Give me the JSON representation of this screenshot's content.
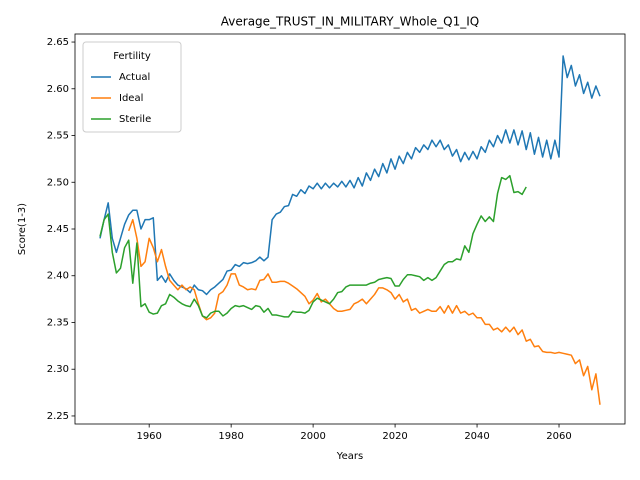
{
  "chart_data": {
    "type": "line",
    "title": "Average_TRUST_IN_MILITARY_Whole_Q1_IQ",
    "xlabel": "Years",
    "ylabel": "Score(1-3)",
    "legend": {
      "title": "Fertility",
      "loc": "upper left"
    },
    "grid": false,
    "xlim": [
      1941.9,
      2076.1
    ],
    "xticks": [
      1960,
      1980,
      2000,
      2020,
      2040,
      2060
    ],
    "ylim": [
      2.2414,
      2.6586
    ],
    "yticks": [
      2.25,
      {
        "value": 2.3,
        "label": "2.30"
      },
      2.35,
      {
        "value": 2.4,
        "label": "2.40"
      },
      2.45,
      {
        "value": 2.5,
        "label": "2.50"
      },
      2.55,
      {
        "value": 2.6,
        "label": "2.60"
      },
      2.65
    ],
    "x": [
      1948,
      1949,
      1950,
      1951,
      1952,
      1953,
      1954,
      1955,
      1956,
      1957,
      1958,
      1959,
      1960,
      1961,
      1962,
      1963,
      1964,
      1965,
      1966,
      1967,
      1968,
      1969,
      1970,
      1971,
      1972,
      1973,
      1974,
      1975,
      1976,
      1977,
      1978,
      1979,
      1980,
      1981,
      1982,
      1983,
      1984,
      1985,
      1986,
      1987,
      1988,
      1989,
      1990,
      1991,
      1992,
      1993,
      1994,
      1995,
      1996,
      1997,
      1998,
      1999,
      2000,
      2001,
      2002,
      2003,
      2004,
      2005,
      2006,
      2007,
      2008,
      2009,
      2010,
      2011,
      2012,
      2013,
      2014,
      2015,
      2016,
      2017,
      2018,
      2019,
      2020,
      2021,
      2022,
      2023,
      2024,
      2025,
      2026,
      2027,
      2028,
      2029,
      2030,
      2031,
      2032,
      2033,
      2034,
      2035,
      2036,
      2037,
      2038,
      2039,
      2040,
      2041,
      2042,
      2043,
      2044,
      2045,
      2046,
      2047,
      2048,
      2049,
      2050,
      2051,
      2052,
      2053,
      2054,
      2055,
      2056,
      2057,
      2058,
      2059,
      2060,
      2061,
      2062,
      2063,
      2064,
      2065,
      2066,
      2067,
      2068,
      2069,
      2070
    ],
    "series": [
      {
        "name": "Actual",
        "color": "#1f77b4",
        "values": [
          2.44,
          2.46,
          2.478,
          2.44,
          2.425,
          2.44,
          2.455,
          2.465,
          2.47,
          2.47,
          2.45,
          2.46,
          2.46,
          2.462,
          2.395,
          2.4,
          2.393,
          2.402,
          2.395,
          2.39,
          2.388,
          2.386,
          2.382,
          2.39,
          2.385,
          2.384,
          2.38,
          2.385,
          2.388,
          2.392,
          2.396,
          2.405,
          2.406,
          2.412,
          2.41,
          2.414,
          2.413,
          2.414,
          2.416,
          2.42,
          2.416,
          2.42,
          2.46,
          2.466,
          2.468,
          2.474,
          2.475,
          2.487,
          2.485,
          2.492,
          2.488,
          2.496,
          2.493,
          2.499,
          2.493,
          2.499,
          2.494,
          2.499,
          2.495,
          2.501,
          2.495,
          2.502,
          2.494,
          2.505,
          2.496,
          2.51,
          2.502,
          2.514,
          2.506,
          2.52,
          2.51,
          2.525,
          2.514,
          2.528,
          2.52,
          2.532,
          2.525,
          2.537,
          2.532,
          2.54,
          2.535,
          2.545,
          2.538,
          2.545,
          2.535,
          2.54,
          2.528,
          2.535,
          2.522,
          2.532,
          2.524,
          2.533,
          2.525,
          2.538,
          2.532,
          2.545,
          2.538,
          2.55,
          2.542,
          2.556,
          2.542,
          2.556,
          2.54,
          2.555,
          2.535,
          2.553,
          2.53,
          2.548,
          2.527,
          2.545,
          2.525,
          2.545,
          2.527,
          2.635,
          2.612,
          2.625,
          2.603,
          2.615,
          2.595,
          2.607,
          2.59,
          2.603,
          2.592
        ]
      },
      {
        "name": "Ideal",
        "color": "#ff7f0e",
        "values": [
          null,
          null,
          null,
          null,
          null,
          null,
          null,
          2.448,
          2.46,
          2.44,
          2.41,
          2.415,
          2.44,
          2.43,
          2.415,
          2.428,
          2.41,
          2.395,
          2.39,
          2.385,
          2.39,
          2.385,
          2.388,
          2.385,
          2.37,
          2.357,
          2.353,
          2.355,
          2.36,
          2.38,
          2.383,
          2.39,
          2.402,
          2.402,
          2.39,
          2.388,
          2.385,
          2.386,
          2.385,
          2.395,
          2.396,
          2.402,
          2.393,
          2.393,
          2.394,
          2.394,
          2.392,
          2.389,
          2.386,
          2.382,
          2.378,
          2.37,
          2.374,
          2.381,
          2.372,
          2.375,
          2.37,
          2.365,
          2.362,
          2.362,
          2.363,
          2.364,
          2.37,
          2.372,
          2.375,
          2.37,
          2.375,
          2.38,
          2.387,
          2.387,
          2.385,
          2.382,
          2.375,
          2.38,
          2.372,
          2.375,
          2.363,
          2.365,
          2.36,
          2.362,
          2.364,
          2.362,
          2.362,
          2.367,
          2.36,
          2.368,
          2.36,
          2.368,
          2.36,
          2.362,
          2.358,
          2.36,
          2.355,
          2.355,
          2.348,
          2.348,
          2.342,
          2.344,
          2.34,
          2.345,
          2.34,
          2.345,
          2.337,
          2.342,
          2.33,
          2.332,
          2.324,
          2.325,
          2.319,
          2.318,
          2.318,
          2.317,
          2.318,
          2.317,
          2.316,
          2.315,
          2.306,
          2.31,
          2.293,
          2.303,
          2.278,
          2.295,
          2.262
        ]
      },
      {
        "name": "Sterile",
        "color": "#2ca02c",
        "values": [
          2.442,
          2.46,
          2.466,
          2.425,
          2.403,
          2.408,
          2.43,
          2.438,
          2.392,
          2.435,
          2.367,
          2.37,
          2.361,
          2.359,
          2.36,
          2.368,
          2.37,
          2.38,
          2.377,
          2.373,
          2.37,
          2.368,
          2.367,
          2.375,
          2.368,
          2.357,
          2.355,
          2.36,
          2.362,
          2.362,
          2.357,
          2.36,
          2.365,
          2.368,
          2.367,
          2.368,
          2.366,
          2.364,
          2.368,
          2.367,
          2.361,
          2.365,
          2.358,
          2.358,
          2.357,
          2.356,
          2.356,
          2.362,
          2.361,
          2.361,
          2.36,
          2.363,
          2.372,
          2.376,
          2.374,
          2.372,
          2.37,
          2.375,
          2.382,
          2.383,
          2.388,
          2.39,
          2.39,
          2.39,
          2.39,
          2.39,
          2.392,
          2.393,
          2.396,
          2.397,
          2.398,
          2.397,
          2.389,
          2.389,
          2.396,
          2.401,
          2.401,
          2.4,
          2.399,
          2.395,
          2.398,
          2.395,
          2.398,
          2.405,
          2.412,
          2.415,
          2.415,
          2.418,
          2.417,
          2.432,
          2.425,
          2.445,
          2.455,
          2.464,
          2.458,
          2.463,
          2.458,
          2.488,
          2.505,
          2.503,
          2.507,
          2.489,
          2.49,
          2.487,
          2.495,
          null,
          null,
          null,
          null,
          null,
          null,
          null,
          null,
          null,
          null,
          null,
          null,
          null,
          null,
          null,
          null,
          null,
          null
        ]
      }
    ]
  }
}
